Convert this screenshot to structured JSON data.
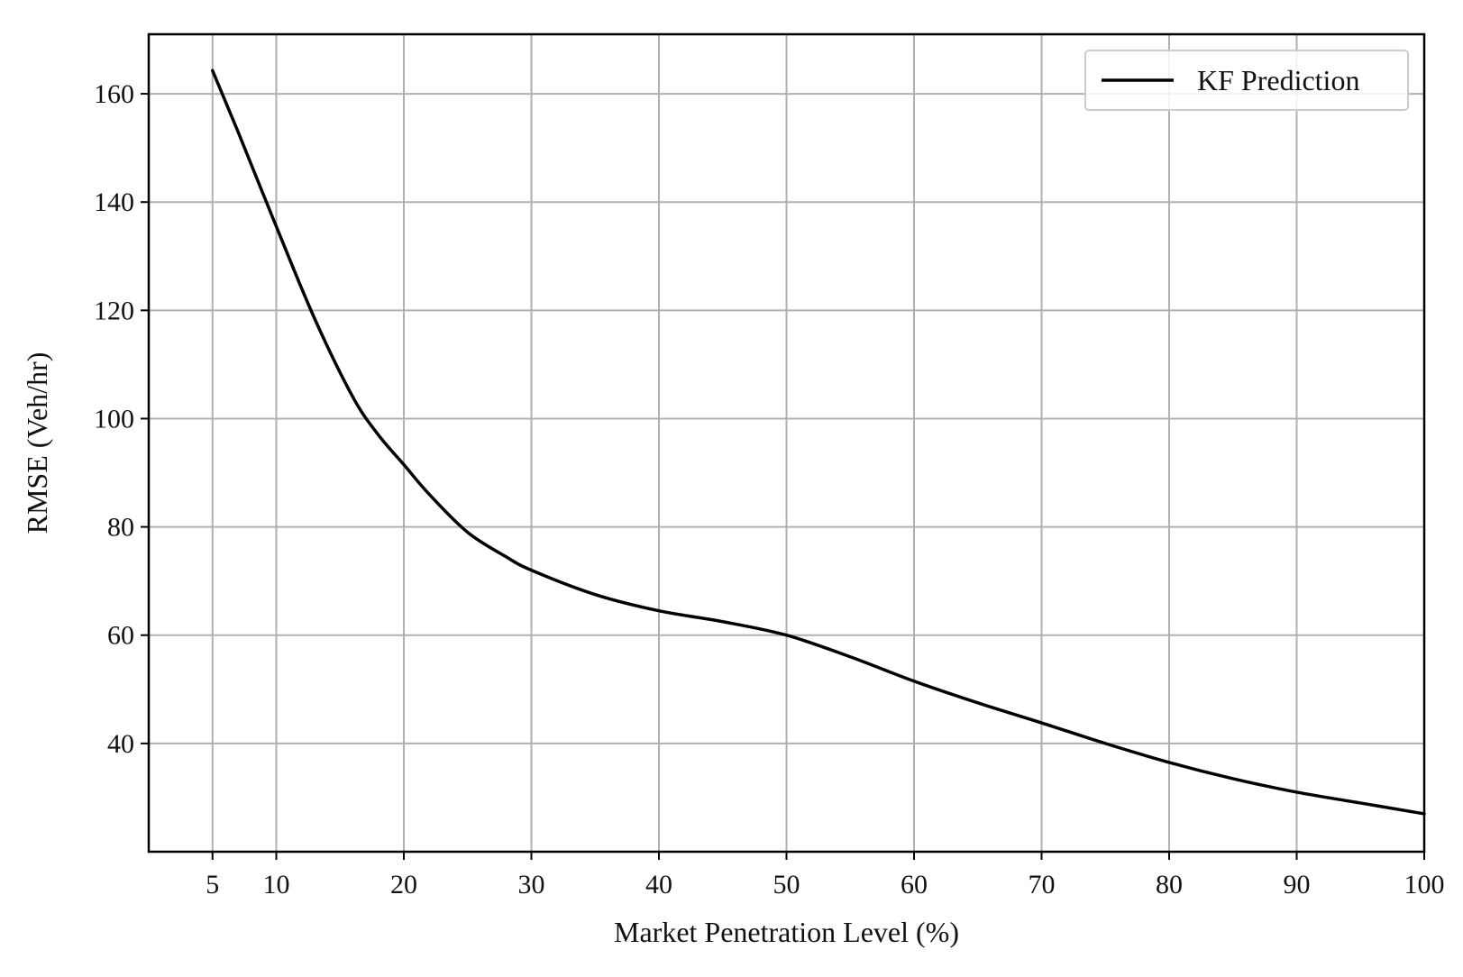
{
  "chart_data": {
    "type": "line",
    "xlabel": "Market Penetration Level (%)",
    "ylabel": "RMSE (Veh/hr)",
    "xlim": [
      0,
      100
    ],
    "ylim": [
      20,
      171
    ],
    "xticks": [
      5,
      10,
      20,
      30,
      40,
      50,
      60,
      70,
      80,
      90,
      100
    ],
    "yticks": [
      40,
      60,
      80,
      100,
      120,
      140,
      160
    ],
    "grid": true,
    "legend_position": "top-right",
    "line_color": "#000000",
    "series": [
      {
        "name": "KF Prediction",
        "x": [
          5,
          7,
          10,
          13,
          16,
          18,
          20,
          22,
          25,
          28,
          30,
          35,
          40,
          45,
          50,
          55,
          60,
          65,
          70,
          75,
          80,
          85,
          90,
          95,
          100
        ],
        "y": [
          164.3,
          153,
          135.5,
          118.5,
          104,
          97,
          91.5,
          86,
          79,
          74.5,
          72,
          67.5,
          64.5,
          62.5,
          60,
          56,
          51.5,
          47.5,
          43.8,
          40,
          36.5,
          33.5,
          31,
          29,
          27
        ]
      }
    ]
  }
}
